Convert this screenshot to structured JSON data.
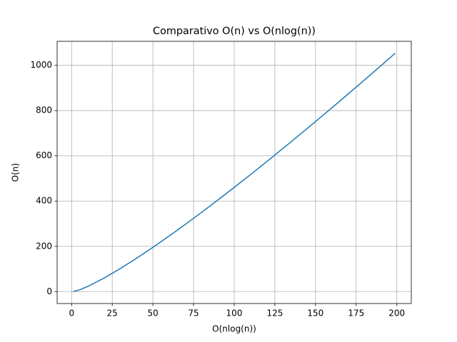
{
  "chart_data": {
    "type": "line",
    "title": "Comparativo O(n) vs O(nlog(n))",
    "xlabel": "O(nlog(n))",
    "ylabel": "O(n)",
    "x": [
      1,
      5,
      10,
      20,
      30,
      40,
      50,
      60,
      70,
      80,
      90,
      100,
      110,
      120,
      130,
      140,
      150,
      160,
      170,
      180,
      190,
      199
    ],
    "series": [
      {
        "color": "#1f77b4",
        "values": [
          0,
          8.05,
          23.0,
          59.9,
          102.0,
          147.6,
          195.6,
          245.7,
          297.4,
          350.6,
          405.0,
          460.5,
          517.0,
          574.5,
          632.8,
          691.8,
          751.6,
          812.0,
          873.1,
          934.7,
          996.9,
          1053.4
        ]
      }
    ],
    "xlim": [
      -8.9,
      208.9
    ],
    "ylim": [
      -52.7,
      1106.1
    ],
    "xticks": [
      0,
      25,
      50,
      75,
      100,
      125,
      150,
      175,
      200
    ],
    "yticks": [
      0,
      200,
      400,
      600,
      800,
      1000
    ],
    "grid": true
  }
}
